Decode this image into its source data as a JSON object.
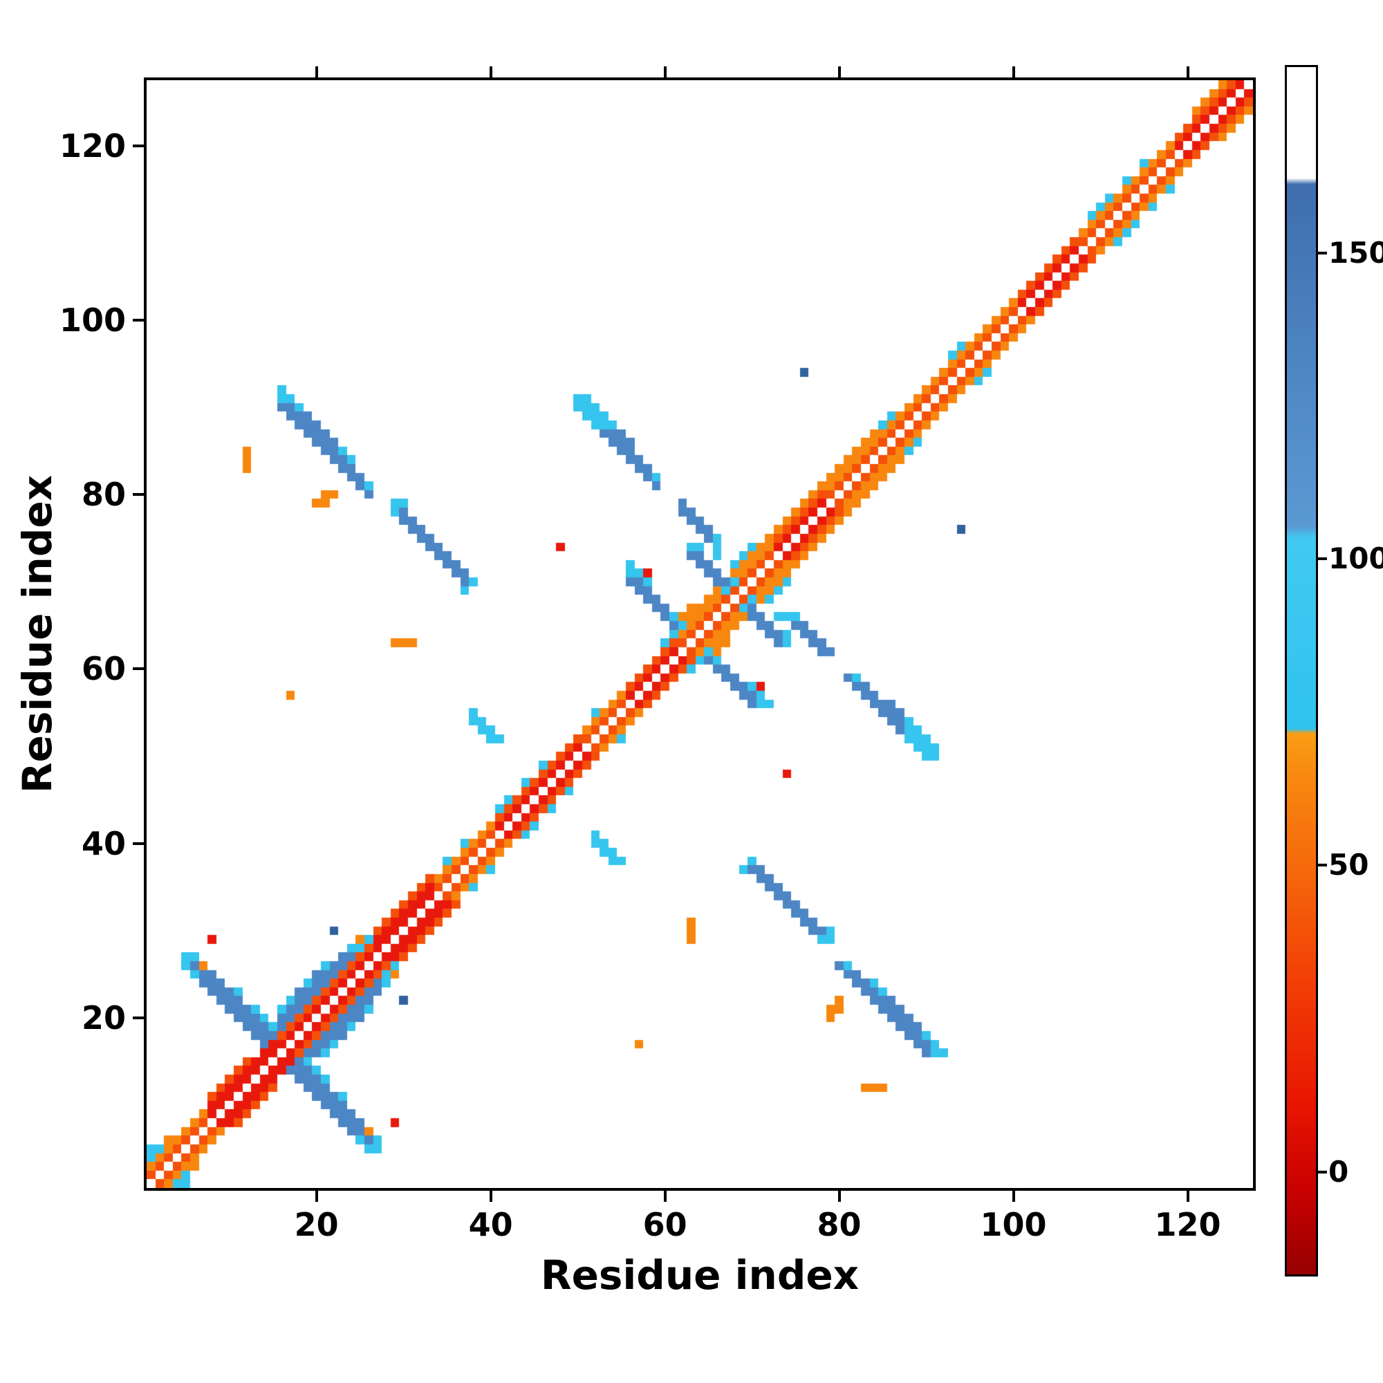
{
  "figure": {
    "background": "#ffffff"
  },
  "chart_data": {
    "type": "heatmap",
    "title": "",
    "xlabel": "Residue index",
    "ylabel": "Residue index",
    "n_residues": 127,
    "x_ticks": [
      20,
      40,
      60,
      80,
      100,
      120
    ],
    "y_ticks": [
      20,
      40,
      60,
      80,
      100,
      120
    ],
    "symmetric": true,
    "palette": {
      "r": "#e8190c",
      "O": "#f4500a",
      "o": "#f8870f",
      "c": "#35c5ee",
      "b": "#4d86c5",
      "n": "#31619f"
    },
    "diagonal_band": [
      {
        "from": 1,
        "to": 7,
        "d1": "O",
        "d2": "o"
      },
      {
        "from": 8,
        "to": 12,
        "d1": "r",
        "d2": "r",
        "d3": "O"
      },
      {
        "from": 13,
        "to": 15,
        "d1": "r",
        "d2": "r"
      },
      {
        "from": 16,
        "to": 26,
        "d1": "r",
        "d2": "O"
      },
      {
        "from": 27,
        "to": 33,
        "d1": "r",
        "d2": "r",
        "d3": "O"
      },
      {
        "from": 34,
        "to": 40,
        "d1": "O",
        "d2": "o"
      },
      {
        "from": 41,
        "to": 50,
        "d1": "r",
        "d2": "O"
      },
      {
        "from": 51,
        "to": 55,
        "d1": "O",
        "d2": "o"
      },
      {
        "from": 56,
        "to": 61,
        "d1": "r",
        "d2": "O"
      },
      {
        "from": 62,
        "to": 72,
        "d1": "O",
        "d2": "o",
        "d3": "o"
      },
      {
        "from": 73,
        "to": 78,
        "d1": "r",
        "d2": "O",
        "d3": "o"
      },
      {
        "from": 79,
        "to": 84,
        "d1": "O",
        "d2": "o",
        "d3": "o"
      },
      {
        "from": 85,
        "to": 100,
        "d1": "O",
        "d2": "o"
      },
      {
        "from": 101,
        "to": 107,
        "d1": "r",
        "d2": "O"
      },
      {
        "from": 108,
        "to": 118,
        "d1": "O",
        "d2": "o"
      },
      {
        "from": 119,
        "to": 120,
        "d1": "r",
        "d2": "O"
      },
      {
        "from": 121,
        "to": 126,
        "d1": "r",
        "d2": "O",
        "d3": "o"
      }
    ],
    "cells": [
      [
        1,
        4,
        "c"
      ],
      [
        1,
        5,
        "c"
      ],
      [
        2,
        5,
        "c"
      ],
      [
        3,
        6,
        "o"
      ],
      [
        5,
        26,
        "c"
      ],
      [
        5,
        27,
        "c"
      ],
      [
        6,
        25,
        "c"
      ],
      [
        6,
        26,
        "b"
      ],
      [
        6,
        27,
        "c"
      ],
      [
        7,
        24,
        "b"
      ],
      [
        7,
        25,
        "b"
      ],
      [
        7,
        26,
        "o"
      ],
      [
        8,
        23,
        "b"
      ],
      [
        8,
        24,
        "b"
      ],
      [
        8,
        25,
        "b"
      ],
      [
        9,
        22,
        "b"
      ],
      [
        9,
        23,
        "b"
      ],
      [
        9,
        24,
        "b"
      ],
      [
        10,
        21,
        "b"
      ],
      [
        10,
        22,
        "b"
      ],
      [
        10,
        23,
        "b"
      ],
      [
        11,
        20,
        "b"
      ],
      [
        11,
        21,
        "b"
      ],
      [
        11,
        22,
        "b"
      ],
      [
        11,
        23,
        "c"
      ],
      [
        12,
        19,
        "b"
      ],
      [
        12,
        20,
        "b"
      ],
      [
        12,
        21,
        "b"
      ],
      [
        13,
        18,
        "b"
      ],
      [
        13,
        19,
        "b"
      ],
      [
        13,
        20,
        "b"
      ],
      [
        13,
        21,
        "c"
      ],
      [
        14,
        17,
        "b"
      ],
      [
        14,
        18,
        "b"
      ],
      [
        14,
        19,
        "b"
      ],
      [
        14,
        20,
        "c"
      ],
      [
        15,
        18,
        "b"
      ],
      [
        15,
        19,
        "c"
      ],
      [
        16,
        19,
        "b"
      ],
      [
        16,
        20,
        "b"
      ],
      [
        16,
        21,
        "c"
      ],
      [
        17,
        20,
        "b"
      ],
      [
        17,
        21,
        "b"
      ],
      [
        17,
        22,
        "c"
      ],
      [
        18,
        21,
        "b"
      ],
      [
        18,
        22,
        "b"
      ],
      [
        18,
        23,
        "b"
      ],
      [
        19,
        22,
        "b"
      ],
      [
        19,
        23,
        "b"
      ],
      [
        19,
        24,
        "c"
      ],
      [
        20,
        23,
        "b"
      ],
      [
        20,
        24,
        "b"
      ],
      [
        20,
        25,
        "b"
      ],
      [
        21,
        24,
        "b"
      ],
      [
        21,
        25,
        "b"
      ],
      [
        21,
        26,
        "c"
      ],
      [
        22,
        25,
        "b"
      ],
      [
        22,
        26,
        "b"
      ],
      [
        23,
        26,
        "b"
      ],
      [
        23,
        27,
        "b"
      ],
      [
        24,
        27,
        "b"
      ],
      [
        24,
        28,
        "c"
      ],
      [
        25,
        28,
        "c"
      ],
      [
        25,
        29,
        "o"
      ],
      [
        26,
        29,
        "c"
      ],
      [
        8,
        29,
        "r"
      ],
      [
        22,
        30,
        "n"
      ],
      [
        12,
        83,
        "o"
      ],
      [
        12,
        84,
        "o"
      ],
      [
        12,
        85,
        "o"
      ],
      [
        17,
        57,
        "o"
      ],
      [
        29,
        63,
        "o"
      ],
      [
        30,
        63,
        "o"
      ],
      [
        31,
        63,
        "o"
      ],
      [
        48,
        74,
        "r"
      ],
      [
        58,
        71,
        "r"
      ],
      [
        76,
        94,
        "n"
      ],
      [
        16,
        90,
        "b"
      ],
      [
        16,
        91,
        "c"
      ],
      [
        16,
        92,
        "c"
      ],
      [
        17,
        89,
        "b"
      ],
      [
        17,
        90,
        "b"
      ],
      [
        17,
        91,
        "c"
      ],
      [
        18,
        88,
        "b"
      ],
      [
        18,
        89,
        "b"
      ],
      [
        18,
        90,
        "c"
      ],
      [
        19,
        87,
        "b"
      ],
      [
        19,
        88,
        "b"
      ],
      [
        19,
        89,
        "b"
      ],
      [
        20,
        86,
        "b"
      ],
      [
        20,
        87,
        "b"
      ],
      [
        20,
        88,
        "b"
      ],
      [
        21,
        85,
        "b"
      ],
      [
        21,
        86,
        "b"
      ],
      [
        21,
        87,
        "b"
      ],
      [
        22,
        84,
        "b"
      ],
      [
        22,
        85,
        "b"
      ],
      [
        22,
        86,
        "b"
      ],
      [
        23,
        83,
        "b"
      ],
      [
        23,
        84,
        "b"
      ],
      [
        23,
        85,
        "c"
      ],
      [
        24,
        82,
        "b"
      ],
      [
        24,
        83,
        "b"
      ],
      [
        24,
        84,
        "c"
      ],
      [
        25,
        81,
        "b"
      ],
      [
        25,
        82,
        "b"
      ],
      [
        26,
        80,
        "b"
      ],
      [
        26,
        81,
        "c"
      ],
      [
        20,
        79,
        "o"
      ],
      [
        21,
        79,
        "o"
      ],
      [
        21,
        80,
        "o"
      ],
      [
        22,
        80,
        "o"
      ],
      [
        29,
        78,
        "c"
      ],
      [
        29,
        79,
        "c"
      ],
      [
        30,
        77,
        "b"
      ],
      [
        30,
        78,
        "b"
      ],
      [
        30,
        79,
        "c"
      ],
      [
        31,
        76,
        "b"
      ],
      [
        31,
        77,
        "b"
      ],
      [
        32,
        75,
        "b"
      ],
      [
        32,
        76,
        "b"
      ],
      [
        33,
        74,
        "b"
      ],
      [
        33,
        75,
        "b"
      ],
      [
        34,
        73,
        "b"
      ],
      [
        34,
        74,
        "b"
      ],
      [
        35,
        72,
        "b"
      ],
      [
        35,
        73,
        "b"
      ],
      [
        36,
        71,
        "b"
      ],
      [
        36,
        72,
        "b"
      ],
      [
        37,
        69,
        "c"
      ],
      [
        37,
        70,
        "b"
      ],
      [
        37,
        71,
        "b"
      ],
      [
        38,
        70,
        "c"
      ],
      [
        38,
        54,
        "c"
      ],
      [
        38,
        55,
        "c"
      ],
      [
        39,
        53,
        "c"
      ],
      [
        39,
        54,
        "c"
      ],
      [
        40,
        52,
        "c"
      ],
      [
        40,
        53,
        "c"
      ],
      [
        41,
        52,
        "c"
      ],
      [
        35,
        38,
        "c"
      ],
      [
        37,
        40,
        "c"
      ],
      [
        41,
        44,
        "c"
      ],
      [
        42,
        45,
        "c"
      ],
      [
        44,
        47,
        "c"
      ],
      [
        46,
        49,
        "c"
      ],
      [
        52,
        55,
        "c"
      ],
      [
        85,
        88,
        "c"
      ],
      [
        86,
        89,
        "c"
      ],
      [
        93,
        96,
        "c"
      ],
      [
        94,
        97,
        "c"
      ],
      [
        109,
        112,
        "c"
      ],
      [
        110,
        113,
        "c"
      ],
      [
        111,
        114,
        "c"
      ],
      [
        113,
        116,
        "c"
      ],
      [
        115,
        118,
        "c"
      ],
      [
        56,
        70,
        "b"
      ],
      [
        56,
        71,
        "c"
      ],
      [
        56,
        72,
        "c"
      ],
      [
        57,
        69,
        "b"
      ],
      [
        57,
        70,
        "b"
      ],
      [
        57,
        71,
        "c"
      ],
      [
        58,
        68,
        "b"
      ],
      [
        58,
        69,
        "b"
      ],
      [
        58,
        70,
        "c"
      ],
      [
        59,
        67,
        "b"
      ],
      [
        59,
        68,
        "b"
      ],
      [
        60,
        66,
        "b"
      ],
      [
        60,
        67,
        "b"
      ],
      [
        61,
        65,
        "b"
      ],
      [
        61,
        66,
        "c"
      ],
      [
        62,
        65,
        "c"
      ],
      [
        60,
        63,
        "c"
      ],
      [
        61,
        64,
        "c"
      ],
      [
        63,
        73,
        "b"
      ],
      [
        63,
        74,
        "c"
      ],
      [
        64,
        72,
        "b"
      ],
      [
        64,
        73,
        "b"
      ],
      [
        65,
        71,
        "b"
      ],
      [
        65,
        72,
        "b"
      ],
      [
        66,
        70,
        "b"
      ],
      [
        66,
        71,
        "b"
      ],
      [
        67,
        69,
        "c"
      ],
      [
        67,
        70,
        "b"
      ],
      [
        68,
        70,
        "c"
      ],
      [
        66,
        73,
        "c"
      ],
      [
        64,
        74,
        "c"
      ],
      [
        62,
        66,
        "o"
      ],
      [
        63,
        67,
        "o"
      ],
      [
        65,
        68,
        "o"
      ],
      [
        68,
        72,
        "c"
      ],
      [
        69,
        73,
        "c"
      ],
      [
        70,
        74,
        "c"
      ],
      [
        50,
        90,
        "c"
      ],
      [
        50,
        91,
        "c"
      ],
      [
        51,
        89,
        "c"
      ],
      [
        51,
        90,
        "c"
      ],
      [
        51,
        91,
        "c"
      ],
      [
        52,
        88,
        "c"
      ],
      [
        52,
        89,
        "c"
      ],
      [
        52,
        90,
        "c"
      ],
      [
        53,
        87,
        "b"
      ],
      [
        53,
        88,
        "c"
      ],
      [
        53,
        89,
        "c"
      ],
      [
        54,
        86,
        "b"
      ],
      [
        54,
        87,
        "b"
      ],
      [
        54,
        88,
        "c"
      ],
      [
        55,
        85,
        "b"
      ],
      [
        55,
        86,
        "b"
      ],
      [
        55,
        87,
        "b"
      ],
      [
        56,
        84,
        "b"
      ],
      [
        56,
        85,
        "b"
      ],
      [
        56,
        86,
        "b"
      ],
      [
        57,
        83,
        "b"
      ],
      [
        57,
        84,
        "b"
      ],
      [
        58,
        82,
        "b"
      ],
      [
        58,
        83,
        "b"
      ],
      [
        59,
        81,
        "b"
      ],
      [
        59,
        82,
        "c"
      ],
      [
        62,
        78,
        "b"
      ],
      [
        62,
        79,
        "b"
      ],
      [
        63,
        77,
        "b"
      ],
      [
        63,
        78,
        "b"
      ],
      [
        64,
        76,
        "b"
      ],
      [
        64,
        77,
        "b"
      ],
      [
        65,
        75,
        "b"
      ],
      [
        65,
        76,
        "b"
      ],
      [
        66,
        74,
        "c"
      ],
      [
        66,
        75,
        "c"
      ]
    ],
    "colorbar": {
      "ticks": [
        {
          "value": 0,
          "frac": 0.085
        },
        {
          "value": 50,
          "frac": 0.339
        },
        {
          "value": 100,
          "frac": 0.593
        },
        {
          "value": 150,
          "frac": 0.846
        }
      ],
      "gradient": [
        {
          "pos": 0,
          "color": "#970000"
        },
        {
          "pos": 7,
          "color": "#c90000"
        },
        {
          "pos": 14,
          "color": "#e81500"
        },
        {
          "pos": 24,
          "color": "#f23d06"
        },
        {
          "pos": 33,
          "color": "#f5660b"
        },
        {
          "pos": 41,
          "color": "#f8870f"
        },
        {
          "pos": 44.8,
          "color": "#f99d13"
        },
        {
          "pos": 45.2,
          "color": "#2fc3ee"
        },
        {
          "pos": 61,
          "color": "#41c9f1"
        },
        {
          "pos": 62,
          "color": "#5b99d2"
        },
        {
          "pos": 75,
          "color": "#4d86c5"
        },
        {
          "pos": 90.3,
          "color": "#3f6dae"
        },
        {
          "pos": 90.8,
          "color": "#ffffff"
        },
        {
          "pos": 100,
          "color": "#ffffff"
        }
      ]
    }
  }
}
